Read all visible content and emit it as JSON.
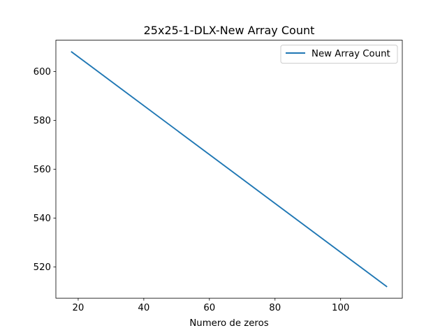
{
  "chart_data": {
    "type": "line",
    "title": "25x25-1-DLX-New Array Count",
    "xlabel": "Numero de zeros",
    "ylabel": "",
    "xlim": [
      13.2,
      118.8
    ],
    "ylim": [
      507.2,
      612.8
    ],
    "xticks": [
      20,
      40,
      60,
      80,
      100
    ],
    "yticks": [
      520,
      540,
      560,
      580,
      600
    ],
    "grid": false,
    "legend": {
      "position": "top-right"
    },
    "series": [
      {
        "name": "New Array Count",
        "color": "#1f77b4",
        "x": [
          18,
          114
        ],
        "y": [
          608,
          512
        ]
      }
    ]
  }
}
